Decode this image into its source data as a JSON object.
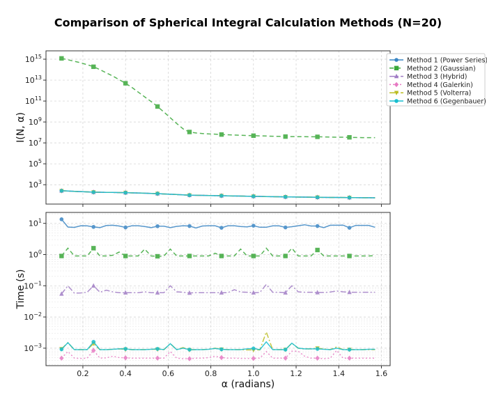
{
  "chart_data": [
    {
      "type": "line",
      "title": "Comparison of Spherical Integral Calculation Methods (N=20)",
      "xlabel": "",
      "ylabel": "I(N, α)",
      "yscale": "log",
      "xlim": [
        0.027,
        1.641
      ],
      "ylim_log10": [
        1.15,
        15.8
      ],
      "xticks": [
        "0.2",
        "0.4",
        "0.6",
        "0.8",
        "1.0",
        "1.2",
        "1.4",
        "1.6"
      ],
      "yticks": [
        {
          "base": "10",
          "exp": "3"
        },
        {
          "base": "10",
          "exp": "5"
        },
        {
          "base": "10",
          "exp": "7"
        },
        {
          "base": "10",
          "exp": "9"
        },
        {
          "base": "10",
          "exp": "11"
        },
        {
          "base": "10",
          "exp": "13"
        },
        {
          "base": "10",
          "exp": "15"
        }
      ],
      "grid": true,
      "legend": "outside-right",
      "x": {
        "start": 0.1,
        "step": 0.03,
        "count": 50
      },
      "series": [
        {
          "name": "Method 1 (Power Series)",
          "color": "#3a86c4",
          "dash": "",
          "marker": "circle",
          "values": [
            263,
            248,
            234,
            220,
            207,
            195,
            191,
            187,
            182,
            178,
            174,
            167,
            161,
            154,
            147,
            141,
            131,
            122,
            115,
            107,
            100,
            98,
            96,
            93,
            91,
            89,
            86,
            84,
            82,
            80,
            78,
            76,
            74,
            72,
            71,
            69,
            68,
            66,
            65,
            64,
            63,
            62,
            61,
            61,
            60,
            59,
            58,
            57,
            57,
            56
          ]
        },
        {
          "name": "Method 2 (Gaussian)",
          "color": "#3aa83a",
          "dash": "6,4",
          "marker": "square",
          "values": [
            1200000000000000.0,
            890000000000000.0,
            630000000000000.0,
            450000000000000.0,
            300000000000000.0,
            190000000000000.0,
            100000000000000.0,
            50000000000000.0,
            25000000000000.0,
            11000000000000.0,
            5000000000000.0,
            2000000000000.0,
            710000000000.0,
            250000000000.0,
            89000000000.0,
            30000000000.0,
            8900000000.0,
            2500000000.0,
            710000000.0,
            220000000.0,
            110000000.0,
            89000000.0,
            79000000.0,
            72000000.0,
            68000000.0,
            63000000.0,
            60000000.0,
            56000000.0,
            54000000.0,
            51000000.0,
            49000000.0,
            47000000.0,
            45000000.0,
            43000000.0,
            42000000.0,
            40000000.0,
            40000000.0,
            39000000.0,
            39000000.0,
            38000000.0,
            38000000.0,
            37000000.0,
            36000000.0,
            35000000.0,
            35000000.0,
            34000000.0,
            33000000.0,
            32000000.0,
            32000000.0,
            32000000.0
          ]
        },
        {
          "name": "Method 3 (Hybrid)",
          "color": "#a07cc5",
          "dash": "8,3,2,3",
          "marker": "triangle-up",
          "values": [
            263,
            248,
            234,
            220,
            207,
            195,
            191,
            187,
            182,
            178,
            174,
            167,
            161,
            154,
            147,
            141,
            131,
            122,
            115,
            107,
            100,
            98,
            96,
            93,
            91,
            89,
            86,
            84,
            82,
            80,
            78,
            76,
            74,
            72,
            71,
            69,
            68,
            66,
            65,
            64,
            63,
            62,
            61,
            61,
            60,
            59,
            58,
            57,
            57,
            56
          ]
        },
        {
          "name": "Method 4 (Galerkin)",
          "color": "#e77ac3",
          "dash": "2,3",
          "marker": "diamond",
          "values": [
            263,
            248,
            234,
            220,
            207,
            195,
            191,
            187,
            182,
            178,
            174,
            167,
            161,
            154,
            147,
            141,
            131,
            122,
            115,
            107,
            100,
            98,
            96,
            93,
            91,
            89,
            86,
            84,
            82,
            80,
            78,
            76,
            74,
            72,
            71,
            69,
            68,
            66,
            65,
            64,
            63,
            62,
            61,
            61,
            60,
            59,
            58,
            57,
            57,
            56
          ]
        },
        {
          "name": "Method 5 (Volterra)",
          "color": "#bcbd22",
          "dash": "8,3,2,3",
          "marker": "triangle-down",
          "values": [
            263,
            248,
            234,
            220,
            207,
            195,
            191,
            187,
            182,
            178,
            174,
            167,
            161,
            154,
            147,
            141,
            131,
            122,
            115,
            107,
            100,
            98,
            96,
            93,
            91,
            89,
            86,
            84,
            82,
            80,
            78,
            76,
            74,
            72,
            71,
            69,
            68,
            66,
            65,
            64,
            63,
            62,
            61,
            61,
            60,
            59,
            58,
            57,
            57,
            56
          ]
        },
        {
          "name": "Method 6 (Gegenbauer)",
          "color": "#17becf",
          "dash": "",
          "marker": "circle",
          "values": [
            263,
            248,
            234,
            220,
            207,
            195,
            191,
            187,
            182,
            178,
            174,
            167,
            161,
            154,
            147,
            141,
            131,
            122,
            115,
            107,
            100,
            98,
            96,
            93,
            91,
            89,
            86,
            84,
            82,
            80,
            78,
            76,
            74,
            72,
            71,
            69,
            68,
            66,
            65,
            64,
            63,
            62,
            61,
            61,
            60,
            59,
            58,
            57,
            57,
            56
          ]
        }
      ]
    },
    {
      "type": "line",
      "xlabel": "α (radians)",
      "ylabel": "Time (s)",
      "yscale": "log",
      "xlim": [
        0.027,
        1.641
      ],
      "ylim_log10": [
        -3.56,
        1.35
      ],
      "xticks": [
        "0.2",
        "0.4",
        "0.6",
        "0.8",
        "1.0",
        "1.2",
        "1.4",
        "1.6"
      ],
      "yticks": [
        {
          "base": "10",
          "exp": "−3"
        },
        {
          "base": "10",
          "exp": "−2"
        },
        {
          "base": "10",
          "exp": "−1"
        },
        {
          "base": "10",
          "exp": "0"
        },
        {
          "base": "10",
          "exp": "1"
        }
      ],
      "grid": true,
      "x": {
        "start": 0.1,
        "step": 0.03,
        "count": 50
      },
      "series": [
        {
          "name": "Method 1 (Power Series)",
          "color": "#3a86c4",
          "dash": "",
          "marker": "circle",
          "values": [
            13.5,
            7.6,
            7.4,
            8.4,
            8.3,
            7.7,
            7.3,
            8.5,
            8.7,
            8.2,
            7.4,
            8.4,
            8.4,
            7.9,
            7.3,
            8.1,
            8.1,
            7.3,
            8.0,
            8.4,
            8.2,
            7.1,
            8.2,
            8.4,
            8.4,
            7.2,
            8.4,
            8.4,
            7.9,
            7.7,
            8.4,
            7.5,
            7.5,
            8.3,
            8.3,
            7.4,
            7.8,
            8.4,
            9.0,
            8.2,
            8.2,
            7.3,
            8.7,
            8.7,
            8.8,
            7.2,
            8.6,
            8.6,
            8.6,
            7.5
          ]
        },
        {
          "name": "Method 2 (Gaussian)",
          "color": "#3aa83a",
          "dash": "6,4",
          "marker": "square",
          "values": [
            0.9,
            1.6,
            0.9,
            0.9,
            0.9,
            1.6,
            0.9,
            0.9,
            0.95,
            1.2,
            0.9,
            0.9,
            0.9,
            1.5,
            0.9,
            0.88,
            0.9,
            1.5,
            0.9,
            0.9,
            0.9,
            0.9,
            0.9,
            0.9,
            1.1,
            0.9,
            0.9,
            0.9,
            1.5,
            0.9,
            0.9,
            0.9,
            1.6,
            0.9,
            0.9,
            0.9,
            1.6,
            0.9,
            0.9,
            0.9,
            1.4,
            0.9,
            0.9,
            0.9,
            0.9,
            0.9,
            0.9,
            0.9,
            0.9,
            0.92
          ]
        },
        {
          "name": "Method 3 (Hybrid)",
          "color": "#a07cc5",
          "dash": "8,3,2,3",
          "marker": "triangle-up",
          "values": [
            0.055,
            0.1,
            0.058,
            0.059,
            0.062,
            0.1,
            0.062,
            0.072,
            0.064,
            0.06,
            0.06,
            0.06,
            0.06,
            0.064,
            0.06,
            0.06,
            0.06,
            0.1,
            0.064,
            0.062,
            0.059,
            0.06,
            0.06,
            0.06,
            0.06,
            0.06,
            0.06,
            0.075,
            0.063,
            0.062,
            0.06,
            0.061,
            0.11,
            0.062,
            0.062,
            0.06,
            0.1,
            0.064,
            0.062,
            0.062,
            0.061,
            0.061,
            0.063,
            0.068,
            0.064,
            0.062,
            0.062,
            0.062,
            0.062,
            0.062
          ]
        },
        {
          "name": "Method 4 (Galerkin)",
          "color": "#e77ac3",
          "dash": "2,3",
          "marker": "diamond",
          "values": [
            0.00048,
            0.00078,
            0.00048,
            0.00047,
            0.00048,
            0.00085,
            0.00048,
            0.00049,
            0.00055,
            0.0005,
            0.00049,
            0.00048,
            0.00048,
            0.00048,
            0.00048,
            0.00048,
            0.00048,
            0.00078,
            0.00048,
            0.00046,
            0.00046,
            0.00048,
            0.00048,
            0.0005,
            0.00055,
            0.0005,
            0.00048,
            0.00048,
            0.00047,
            0.00047,
            0.00047,
            0.00048,
            0.00078,
            0.00048,
            0.00048,
            0.00048,
            0.0008,
            0.0008,
            0.00055,
            0.00048,
            0.00048,
            0.00046,
            0.00048,
            0.00085,
            0.00048,
            0.00048,
            0.00048,
            0.00048,
            0.00048,
            0.00048
          ]
        },
        {
          "name": "Method 5 (Volterra)",
          "color": "#bcbd22",
          "dash": "8,3,2,3",
          "marker": "triangle-down",
          "values": [
            0.00095,
            0.0015,
            0.0009,
            0.0009,
            0.0009,
            0.0014,
            0.0009,
            0.0009,
            0.00092,
            0.00095,
            0.00092,
            0.0009,
            0.0009,
            0.0009,
            0.00092,
            0.00092,
            0.0009,
            0.0014,
            0.0009,
            0.00105,
            0.00088,
            0.0009,
            0.0009,
            0.00092,
            0.001,
            0.00092,
            0.0009,
            0.0009,
            0.0009,
            0.00088,
            0.00088,
            0.00088,
            0.0033,
            0.0009,
            0.0009,
            0.0009,
            0.00145,
            0.001,
            0.00095,
            0.00095,
            0.001,
            0.00095,
            0.0009,
            0.0011,
            0.0009,
            0.0009,
            0.0009,
            0.0009,
            0.0009,
            0.0009
          ]
        },
        {
          "name": "Method 6 (Gegenbauer)",
          "color": "#17becf",
          "dash": "",
          "marker": "circle",
          "values": [
            0.00092,
            0.0015,
            0.0009,
            0.0009,
            0.0009,
            0.0016,
            0.0009,
            0.0009,
            0.00092,
            0.00095,
            0.00095,
            0.0009,
            0.0009,
            0.0009,
            0.00092,
            0.00095,
            0.0009,
            0.0014,
            0.0009,
            0.001,
            0.0009,
            0.0009,
            0.0009,
            0.00092,
            0.00098,
            0.00092,
            0.0009,
            0.0009,
            0.0009,
            0.00095,
            0.00098,
            0.0009,
            0.0016,
            0.0009,
            0.0009,
            0.0009,
            0.00145,
            0.001,
            0.00095,
            0.00095,
            0.00095,
            0.00092,
            0.0009,
            0.001,
            0.0009,
            0.0009,
            0.0009,
            0.0009,
            0.00092,
            0.00092
          ]
        }
      ]
    }
  ]
}
